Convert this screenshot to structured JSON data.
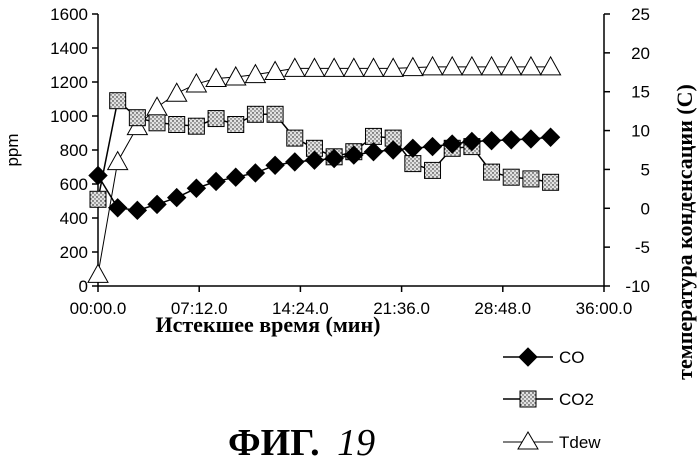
{
  "chart_data": {
    "type": "line",
    "x_ticks": [
      "00:00.0",
      "07:12.0",
      "14:24.0",
      "21:36.0",
      "28:48.0",
      "36:00.0"
    ],
    "xlabel": "Истекшее время (мин)",
    "ylabel_left": "ppm",
    "ylabel_right": "температура конденсации (C)",
    "ylim_left": [
      0,
      1600
    ],
    "ylim_right": [
      -10,
      25
    ],
    "xlim_minutes": [
      0,
      36
    ],
    "y_ticks_left": [
      "0",
      "200",
      "400",
      "600",
      "800",
      "1000",
      "1200",
      "1400",
      "1600"
    ],
    "y_ticks_right": [
      "-10",
      "-5",
      "0",
      "5",
      "10",
      "15",
      "20",
      "25"
    ],
    "series": [
      {
        "name": "CO",
        "axis": "left",
        "marker": "diamond-filled",
        "x": [
          0,
          1.4,
          2.8,
          4.2,
          5.6,
          7.0,
          8.4,
          9.8,
          11.2,
          12.6,
          14.0,
          15.4,
          16.8,
          18.2,
          19.6,
          21.0,
          22.4,
          23.8,
          25.2,
          26.6,
          28.0,
          29.4,
          30.8,
          32.2
        ],
        "y": [
          650,
          460,
          445,
          480,
          520,
          575,
          615,
          640,
          665,
          710,
          730,
          740,
          750,
          770,
          790,
          800,
          810,
          820,
          835,
          850,
          855,
          860,
          865,
          875
        ]
      },
      {
        "name": "CO2",
        "axis": "left",
        "marker": "square-dotted",
        "x": [
          0,
          1.4,
          2.8,
          4.2,
          5.6,
          7.0,
          8.4,
          9.8,
          11.2,
          12.6,
          14.0,
          15.4,
          16.8,
          18.2,
          19.6,
          21.0,
          22.4,
          23.8,
          25.2,
          26.6,
          28.0,
          29.4,
          30.8,
          32.2
        ],
        "y": [
          510,
          1090,
          990,
          960,
          950,
          940,
          985,
          950,
          1010,
          1010,
          870,
          810,
          760,
          790,
          880,
          870,
          720,
          680,
          810,
          820,
          670,
          640,
          630,
          610
        ]
      },
      {
        "name": "Tdew",
        "axis": "right",
        "marker": "triangle-open",
        "x": [
          0,
          1.4,
          2.8,
          4.2,
          5.6,
          7.0,
          8.4,
          9.8,
          11.2,
          12.6,
          14.0,
          15.4,
          16.8,
          18.2,
          19.6,
          21.0,
          22.4,
          23.8,
          25.2,
          26.6,
          28.0,
          29.4,
          30.8,
          32.2
        ],
        "y": [
          -8.5,
          6.0,
          10.5,
          13.0,
          14.8,
          16.0,
          16.7,
          16.9,
          17.2,
          17.6,
          18.0,
          18.0,
          18.0,
          18.0,
          18.0,
          18.0,
          18.1,
          18.2,
          18.2,
          18.2,
          18.2,
          18.2,
          18.2,
          18.2
        ]
      }
    ],
    "legend": [
      "CO",
      "CO2",
      "Tdew"
    ],
    "legend_position": "bottom-right",
    "grid": false
  },
  "caption": {
    "fig_word": "ФИГ.",
    "fig_number": "19"
  },
  "colors": {
    "line": "#000000",
    "co2_fill": "#d8d8d8",
    "tdew_fill": "#ffffff"
  }
}
